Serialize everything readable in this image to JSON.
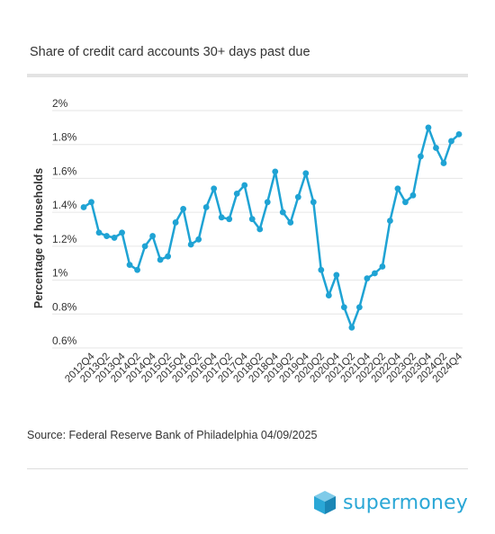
{
  "title": "Share of credit card accounts 30+ days past due",
  "source": "Source: Federal Reserve Bank of Philadelphia 04/09/2025",
  "logo": {
    "text": "supermoney",
    "icon": "cube-logo-icon"
  },
  "colors": {
    "line": "#1fa3d4",
    "grid": "#e6e6e6",
    "text": "#333333",
    "logo": "#2aa7d6"
  },
  "chart_data": {
    "type": "line",
    "title": "",
    "xlabel": "",
    "ylabel": "Percentage of households",
    "ylim": [
      0.6,
      2.0
    ],
    "yticks": [
      {
        "value": 0.6,
        "label": "0.6%"
      },
      {
        "value": 0.8,
        "label": "0.8%"
      },
      {
        "value": 1.0,
        "label": "1%"
      },
      {
        "value": 1.2,
        "label": "1.2%"
      },
      {
        "value": 1.4,
        "label": "1.4%"
      },
      {
        "value": 1.6,
        "label": "1.6%"
      },
      {
        "value": 1.8,
        "label": "1.8%"
      },
      {
        "value": 2.0,
        "label": "2%"
      }
    ],
    "grid": true,
    "x": [
      "2012Q3",
      "2012Q4",
      "2013Q1",
      "2013Q2",
      "2013Q3",
      "2013Q4",
      "2014Q1",
      "2014Q2",
      "2014Q3",
      "2014Q4",
      "2015Q1",
      "2015Q2",
      "2015Q3",
      "2015Q4",
      "2016Q1",
      "2016Q2",
      "2016Q3",
      "2016Q4",
      "2017Q1",
      "2017Q2",
      "2017Q3",
      "2017Q4",
      "2018Q1",
      "2018Q2",
      "2018Q3",
      "2018Q4",
      "2019Q1",
      "2019Q2",
      "2019Q3",
      "2019Q4",
      "2020Q1",
      "2020Q2",
      "2020Q3",
      "2020Q4",
      "2021Q1",
      "2021Q2",
      "2021Q3",
      "2021Q4",
      "2022Q1",
      "2022Q2",
      "2022Q3",
      "2022Q4",
      "2023Q1",
      "2023Q2",
      "2023Q3",
      "2023Q4",
      "2024Q1",
      "2024Q2",
      "2024Q3",
      "2024Q4"
    ],
    "xtick_labels": [
      "2012Q4",
      "2013Q2",
      "2013Q4",
      "2014Q2",
      "2014Q4",
      "2015Q2",
      "2015Q4",
      "2016Q2",
      "2016Q4",
      "2017Q2",
      "2017Q4",
      "2018Q2",
      "2018Q4",
      "2019Q2",
      "2019Q4",
      "2020Q2",
      "2020Q4",
      "2021Q2",
      "2021Q4",
      "2022Q2",
      "2022Q4",
      "2023Q2",
      "2023Q4",
      "2024Q2",
      "2024Q4"
    ],
    "series": [
      {
        "values": [
          1.43,
          1.46,
          1.28,
          1.26,
          1.25,
          1.28,
          1.09,
          1.06,
          1.2,
          1.26,
          1.12,
          1.14,
          1.34,
          1.42,
          1.21,
          1.24,
          1.43,
          1.54,
          1.37,
          1.36,
          1.51,
          1.56,
          1.36,
          1.3,
          1.46,
          1.64,
          1.4,
          1.34,
          1.49,
          1.63,
          1.46,
          1.06,
          0.91,
          1.03,
          0.84,
          0.72,
          0.84,
          1.01,
          1.04,
          1.08,
          1.35,
          1.54,
          1.46,
          1.5,
          1.73,
          1.9,
          1.78,
          1.69,
          1.82,
          1.86
        ]
      }
    ]
  }
}
